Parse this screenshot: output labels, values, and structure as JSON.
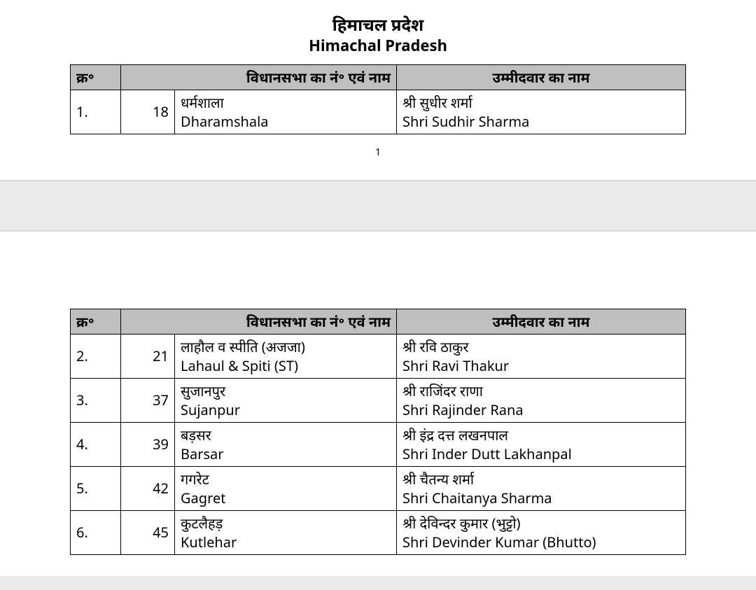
{
  "title": {
    "hindi": "हिमाचल प्रदेश",
    "english": "Himachal Pradesh"
  },
  "headers": {
    "sn": "क्र॰",
    "constituency": "विधानसभा का नं॰ एवं नाम",
    "candidate": "उम्मीदवार का नाम"
  },
  "page_number": "1",
  "table_style": {
    "header_bg": "#bfbfbf",
    "border_color": "#000000",
    "page_bg": "#ffffff",
    "gap_bg": "#eaeaea",
    "col_widths": {
      "sn": 55,
      "num": 60,
      "const": 300
    },
    "font_size_cell": 20,
    "title_fontsize_hi": 24,
    "title_fontsize_en": 22
  },
  "table1": {
    "rows": [
      {
        "sn": "1.",
        "num": "18",
        "const_hi": "धर्मशाला",
        "const_en": "Dharamshala",
        "cand_hi": "श्री सुधीर शर्मा",
        "cand_en": "Shri Sudhir Sharma"
      }
    ]
  },
  "table2": {
    "rows": [
      {
        "sn": "2.",
        "num": "21",
        "const_hi": "लाहौल व स्पीति (अजजा)",
        "const_en": "Lahaul & Spiti (ST)",
        "cand_hi": "श्री रवि ठाकुर",
        "cand_en": "Shri Ravi Thakur"
      },
      {
        "sn": "3.",
        "num": "37",
        "const_hi": "सुजानपुर",
        "const_en": "Sujanpur",
        "cand_hi": "श्री राजिंदर राणा",
        "cand_en": "Shri Rajinder Rana"
      },
      {
        "sn": "4.",
        "num": "39",
        "const_hi": "बड़सर",
        "const_en": "Barsar",
        "cand_hi": "श्री इंद्र दत्त लखनपाल",
        "cand_en": "Shri Inder Dutt Lakhanpal"
      },
      {
        "sn": "5.",
        "num": "42",
        "const_hi": "गगरेट",
        "const_en": "Gagret",
        "cand_hi": "श्री चैतन्य शर्मा",
        "cand_en": "Shri Chaitanya Sharma"
      },
      {
        "sn": "6.",
        "num": "45",
        "const_hi": "कुटलैहड़",
        "const_en": "Kutlehar",
        "cand_hi": "श्री देविन्दर कुमार (भुट्टो)",
        "cand_en": "Shri Devinder Kumar (Bhutto)"
      }
    ]
  }
}
